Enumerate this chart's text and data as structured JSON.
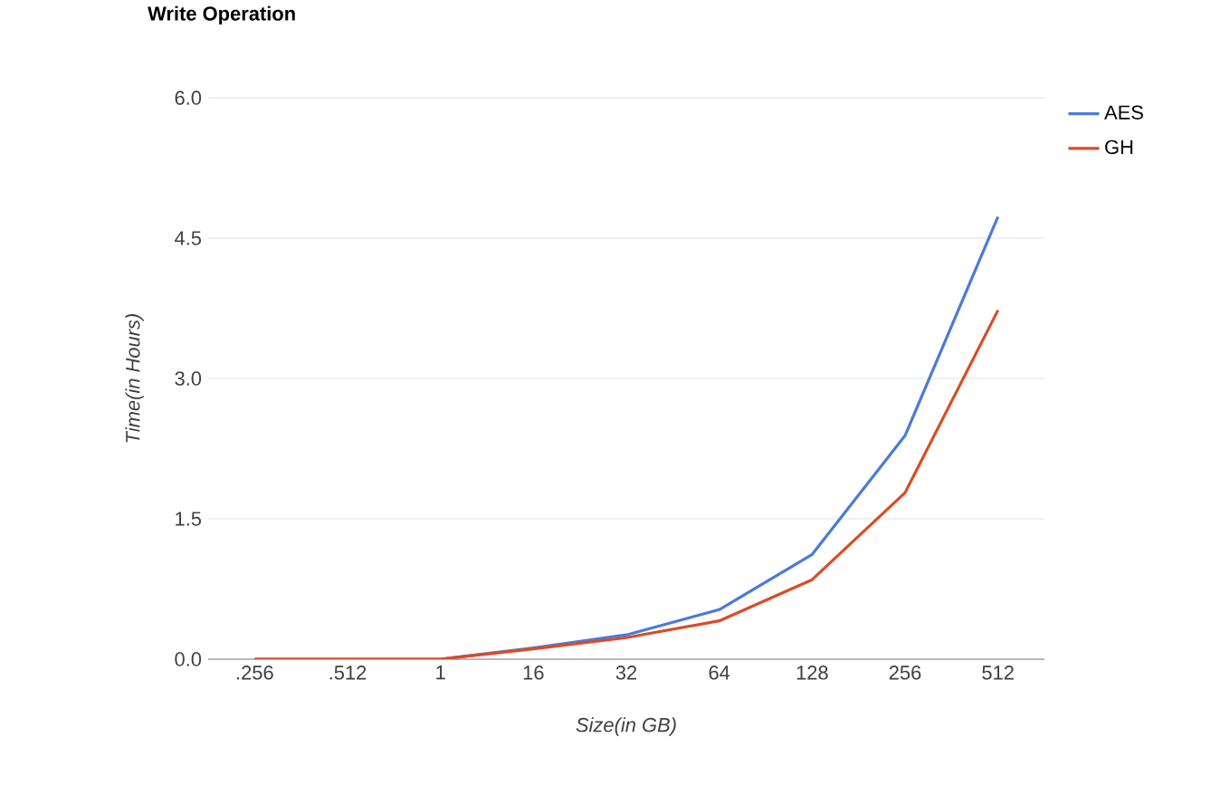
{
  "chart_data": {
    "type": "line",
    "title": "Write Operation",
    "xlabel": "Size(in GB)",
    "ylabel": "Time(in Hours)",
    "categories": [
      ".256",
      ".512",
      "1",
      "16",
      "32",
      "64",
      "128",
      "256",
      "512"
    ],
    "series": [
      {
        "name": "AES",
        "color": "#4a7bd9",
        "values": [
          0,
          0,
          0,
          0.12,
          0.26,
          0.53,
          1.12,
          2.39,
          4.73
        ]
      },
      {
        "name": "GH",
        "color": "#dc4b25",
        "values": [
          0,
          0,
          0,
          0.11,
          0.23,
          0.41,
          0.85,
          1.78,
          3.73
        ]
      }
    ],
    "ylim": [
      0,
      6
    ],
    "yticks": [
      {
        "value": 0,
        "label": "0.0"
      },
      {
        "value": 1.5,
        "label": "1.5"
      },
      {
        "value": 3,
        "label": "3.0"
      },
      {
        "value": 4.5,
        "label": "4.5"
      },
      {
        "value": 6,
        "label": "6.0"
      }
    ],
    "grid": "y",
    "legend": "top right",
    "marker": "none",
    "line_style": "solid"
  }
}
